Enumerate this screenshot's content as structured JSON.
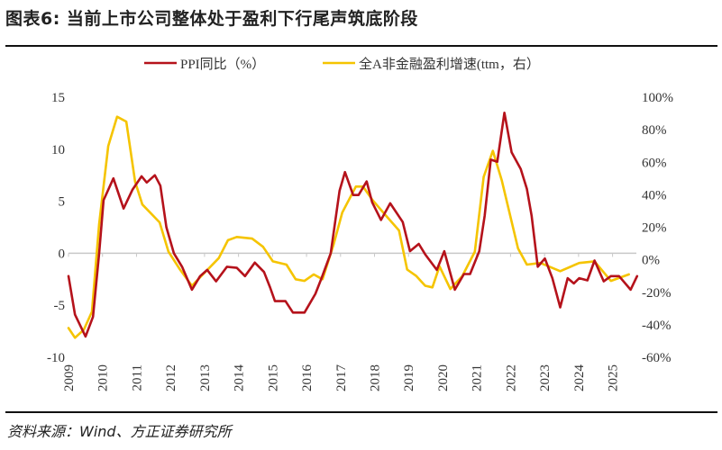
{
  "title": "图表6: 当前上市公司整体处于盈利下行尾声筑底阶段",
  "source": "资料来源：Wind、方正证券研究所",
  "chart_data": {
    "type": "line",
    "title": "图表6: 当前上市公司整体处于盈利下行尾声筑底阶段",
    "xlabel": "",
    "ylabel": "",
    "x_ticks": [
      "2009",
      "2010",
      "2011",
      "2012",
      "2013",
      "2014",
      "2015",
      "2016",
      "2017",
      "2018",
      "2019",
      "2020",
      "2021",
      "2022",
      "2023",
      "2024",
      "2025"
    ],
    "xlim": [
      2009,
      2025.7
    ],
    "ylim_left": [
      -10,
      15
    ],
    "yticks_left": [
      "15",
      "10",
      "5",
      "0",
      "-5",
      "-10"
    ],
    "ylim_right": [
      -60,
      100
    ],
    "yticks_right": [
      "100%",
      "80%",
      "60%",
      "40%",
      "20%",
      "0%",
      "-20%",
      "-40%",
      "-60%"
    ],
    "grid": false,
    "legend_placement": "top",
    "series": [
      {
        "name": "PPI同比（%）",
        "axis": "left",
        "color": "#b5121b",
        "x": [
          2009.0,
          2009.19,
          2009.5,
          2009.72,
          2009.9,
          2010.03,
          2010.32,
          2010.62,
          2010.88,
          2011.15,
          2011.3,
          2011.54,
          2011.7,
          2011.88,
          2012.1,
          2012.34,
          2012.63,
          2012.87,
          2013.08,
          2013.34,
          2013.66,
          2013.95,
          2014.19,
          2014.48,
          2014.75,
          2014.93,
          2015.07,
          2015.38,
          2015.6,
          2015.94,
          2016.26,
          2016.44,
          2016.71,
          2016.97,
          2017.13,
          2017.37,
          2017.53,
          2017.77,
          2017.93,
          2018.19,
          2018.46,
          2018.83,
          2019.04,
          2019.3,
          2019.49,
          2019.83,
          2020.05,
          2020.36,
          2020.63,
          2020.81,
          2021.08,
          2021.24,
          2021.42,
          2021.61,
          2021.82,
          2022.03,
          2022.3,
          2022.48,
          2022.62,
          2022.8,
          2023.01,
          2023.23,
          2023.46,
          2023.68,
          2023.86,
          2024.02,
          2024.26,
          2024.47,
          2024.74,
          2024.95,
          2025.19,
          2025.53,
          2025.72
        ],
        "values": [
          -2.2,
          -5.9,
          -8.0,
          -6.1,
          0,
          5.1,
          7.2,
          4.3,
          6.1,
          7.4,
          6.8,
          7.5,
          6.5,
          2.5,
          0,
          -1.3,
          -3.5,
          -2.2,
          -1.6,
          -2.7,
          -1.3,
          -1.4,
          -2.2,
          -0.9,
          -1.8,
          -3.3,
          -4.6,
          -4.6,
          -5.7,
          -5.7,
          -3.9,
          -2.4,
          0,
          6.0,
          7.8,
          5.6,
          5.6,
          6.9,
          4.9,
          3.2,
          4.8,
          3.0,
          0.2,
          0.9,
          -0.1,
          -1.6,
          0.2,
          -3.5,
          -2.0,
          -2.0,
          0.2,
          3.6,
          9.0,
          8.8,
          13.5,
          9.7,
          8.1,
          6.2,
          3.6,
          -1.3,
          -0.5,
          -2.4,
          -5.2,
          -2.4,
          -2.9,
          -2.4,
          -2.6,
          -0.7,
          -2.7,
          -2.2,
          -2.2,
          -3.5,
          -2.2
        ]
      },
      {
        "name": "全A非金融盈利增速(ttm，右）",
        "axis": "right",
        "color": "#f5c400",
        "x": [
          2009.0,
          2009.19,
          2009.45,
          2009.69,
          2009.9,
          2010.17,
          2010.43,
          2010.7,
          2010.96,
          2011.17,
          2011.68,
          2011.94,
          2012.28,
          2012.63,
          2013.0,
          2013.42,
          2013.69,
          2013.95,
          2014.4,
          2014.72,
          2015.01,
          2015.41,
          2015.68,
          2015.94,
          2016.21,
          2016.47,
          2016.79,
          2017.05,
          2017.45,
          2017.66,
          2017.93,
          2018.3,
          2018.72,
          2018.96,
          2019.23,
          2019.49,
          2019.7,
          2019.91,
          2020.23,
          2020.58,
          2020.68,
          2020.95,
          2021.21,
          2021.48,
          2021.74,
          2022.22,
          2022.48,
          2022.88,
          2023.46,
          2024.02,
          2024.47,
          2024.95,
          2025.48
        ],
        "values": [
          -42,
          -48,
          -43,
          -32,
          22,
          70,
          88,
          85,
          48,
          34,
          23,
          5,
          -6,
          -16,
          -8,
          1,
          12,
          14,
          13,
          8,
          -1,
          -3,
          -12,
          -13,
          -9,
          -12,
          9,
          29,
          45,
          45,
          37,
          28,
          18,
          -6,
          -10,
          -16,
          -17,
          -4,
          -18,
          -10,
          -6,
          5,
          51,
          67,
          49,
          7,
          -3,
          -2,
          -7,
          -2,
          -1,
          -13,
          -9
        ]
      }
    ]
  }
}
